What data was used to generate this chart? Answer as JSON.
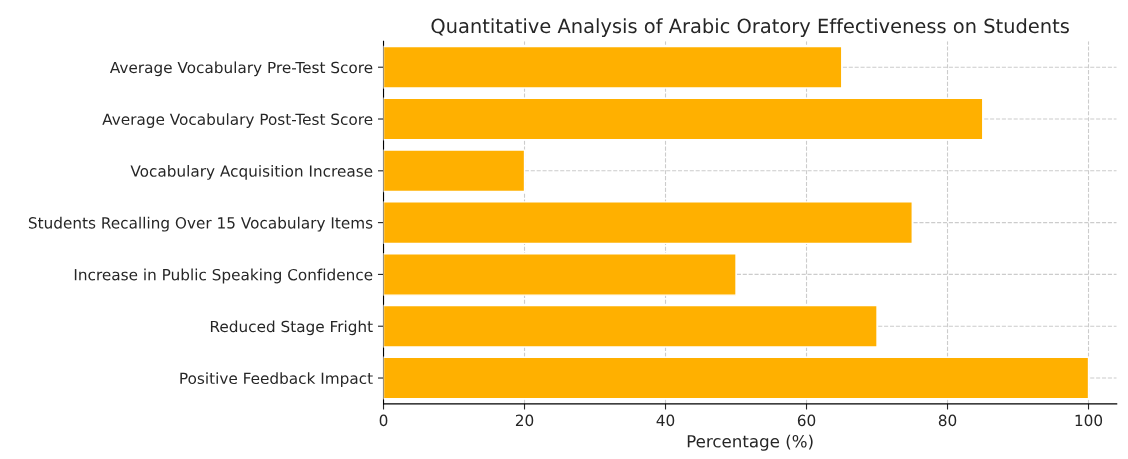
{
  "chart_data": {
    "type": "bar",
    "orientation": "horizontal",
    "title": "Quantitative Analysis of Arabic Oratory Effectiveness on Students",
    "xlabel": "Percentage (%)",
    "categories": [
      "Average Vocabulary Pre-Test Score",
      "Average Vocabulary Post-Test Score",
      "Vocabulary Acquisition Increase",
      "Students Recalling Over 15 Vocabulary Items",
      "Increase in Public Speaking Confidence",
      "Reduced Stage Fright",
      "Positive Feedback Impact"
    ],
    "values": [
      65,
      85,
      20,
      75,
      50,
      70,
      100
    ],
    "color": "#ffb000",
    "xlim": [
      0,
      104
    ],
    "xticks": [
      0,
      20,
      40,
      60,
      80,
      100
    ],
    "grid": true
  }
}
